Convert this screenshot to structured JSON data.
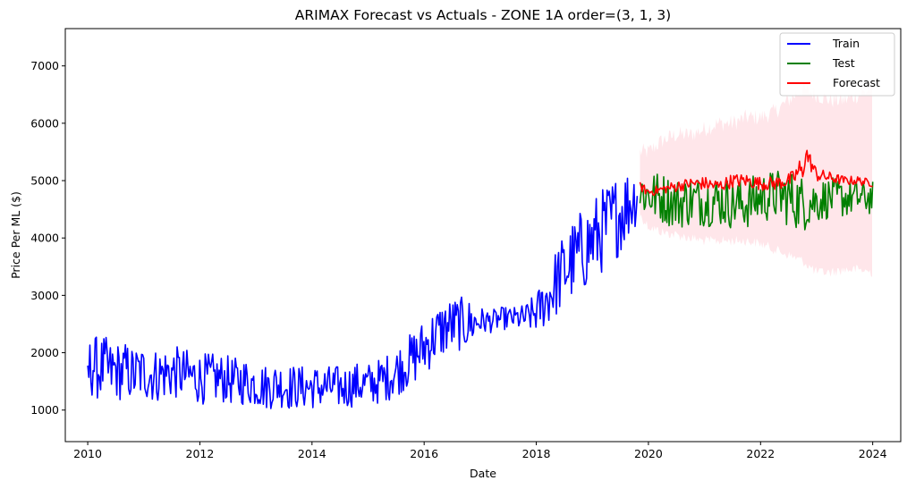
{
  "chart_data": {
    "type": "line",
    "title": "ARIMAX Forecast vs Actuals - ZONE 1A order=(3, 1, 3)",
    "xlabel": "Date",
    "ylabel": "Price Per ML ($)",
    "xlim": [
      2009.6,
      2024.5
    ],
    "ylim": [
      450,
      7650
    ],
    "xticks": [
      2010,
      2012,
      2014,
      2016,
      2018,
      2020,
      2022,
      2024
    ],
    "yticks": [
      1000,
      2000,
      3000,
      4000,
      5000,
      6000,
      7000
    ],
    "grid": false,
    "legend": "top-right",
    "series": [
      {
        "name": "Train",
        "color": "#0000ff",
        "x": [
          2010.0,
          2010.1,
          2010.2,
          2010.3,
          2010.4,
          2010.5,
          2010.6,
          2010.7,
          2010.8,
          2010.9,
          2011.0,
          2011.2,
          2011.4,
          2011.6,
          2011.8,
          2012.0,
          2012.2,
          2012.4,
          2012.6,
          2012.8,
          2013.0,
          2013.2,
          2013.4,
          2013.6,
          2013.8,
          2014.0,
          2014.2,
          2014.4,
          2014.6,
          2014.8,
          2015.0,
          2015.2,
          2015.4,
          2015.6,
          2015.8,
          2016.0,
          2016.2,
          2016.4,
          2016.6,
          2016.8,
          2017.0,
          2017.2,
          2017.4,
          2017.6,
          2017.8,
          2018.0,
          2018.2,
          2018.4,
          2018.6,
          2018.8,
          2019.0,
          2019.2,
          2019.4,
          2019.6,
          2019.8
        ],
        "y": [
          1650,
          1800,
          1700,
          1750,
          1650,
          1700,
          1650,
          1700,
          1600,
          1650,
          1650,
          1600,
          1650,
          1650,
          1600,
          1550,
          1550,
          1550,
          1500,
          1500,
          1450,
          1400,
          1450,
          1400,
          1400,
          1400,
          1400,
          1400,
          1400,
          1450,
          1450,
          1500,
          1600,
          1750,
          1900,
          2100,
          2300,
          2450,
          2500,
          2500,
          2550,
          2550,
          2600,
          2600,
          2600,
          2700,
          2950,
          3300,
          3550,
          3750,
          3950,
          4150,
          4350,
          4550,
          4750
        ],
        "noise": [
          550,
          550,
          550,
          550,
          550,
          520,
          500,
          500,
          500,
          500,
          480,
          480,
          480,
          460,
          460,
          450,
          440,
          430,
          420,
          420,
          400,
          400,
          400,
          400,
          380,
          380,
          380,
          380,
          380,
          380,
          380,
          400,
          420,
          450,
          480,
          500,
          500,
          500,
          480,
          450,
          250,
          200,
          200,
          200,
          250,
          350,
          500,
          650,
          700,
          750,
          750,
          750,
          750,
          700,
          500
        ]
      },
      {
        "name": "Test",
        "color": "#008000",
        "x": [
          2019.85,
          2020.0,
          2020.25,
          2020.5,
          2020.75,
          2021.0,
          2021.25,
          2021.5,
          2021.75,
          2022.0,
          2022.25,
          2022.5,
          2022.75,
          2023.0,
          2023.25,
          2023.5,
          2023.75,
          2024.0
        ],
        "y": [
          4800,
          4750,
          4700,
          4600,
          4650,
          4650,
          4650,
          4600,
          4600,
          4700,
          4750,
          4700,
          4600,
          4650,
          4700,
          4700,
          4700,
          4700
        ],
        "noise": [
          400,
          450,
          450,
          450,
          450,
          450,
          450,
          450,
          450,
          450,
          450,
          500,
          500,
          400,
          350,
          350,
          300,
          300
        ]
      },
      {
        "name": "Forecast",
        "color": "#ff0000",
        "x": [
          2019.85,
          2020.0,
          2020.25,
          2020.5,
          2020.75,
          2021.0,
          2021.25,
          2021.5,
          2021.75,
          2022.0,
          2022.25,
          2022.5,
          2022.6,
          2022.7,
          2022.75,
          2022.8,
          2022.9,
          2023.0,
          2023.25,
          2023.5,
          2023.75,
          2024.0
        ],
        "y": [
          4900,
          4800,
          4850,
          4900,
          4950,
          4950,
          4900,
          5000,
          5000,
          4950,
          4950,
          5000,
          5050,
          5200,
          5100,
          5500,
          5300,
          5100,
          5050,
          5000,
          5000,
          4950
        ],
        "noise": [
          80,
          80,
          80,
          100,
          100,
          120,
          120,
          120,
          120,
          120,
          120,
          130,
          150,
          200,
          150,
          200,
          150,
          120,
          100,
          80,
          80,
          60
        ]
      }
    ],
    "band": {
      "color": "#ffc0cb",
      "x": [
        2019.85,
        2020.0,
        2020.25,
        2020.5,
        2020.75,
        2021.0,
        2021.25,
        2021.5,
        2021.75,
        2022.0,
        2022.25,
        2022.5,
        2022.75,
        2023.0,
        2023.25,
        2023.5,
        2023.75,
        2024.0
      ],
      "lower": [
        4400,
        4200,
        4100,
        4050,
        4000,
        3950,
        3950,
        3950,
        3950,
        3900,
        3800,
        3700,
        3600,
        3400,
        3400,
        3450,
        3450,
        3400
      ],
      "upper": [
        5500,
        5500,
        5700,
        5800,
        5800,
        5900,
        6000,
        6000,
        6100,
        6100,
        6200,
        6400,
        6600,
        6500,
        6400,
        6400,
        6500,
        6600
      ]
    }
  }
}
